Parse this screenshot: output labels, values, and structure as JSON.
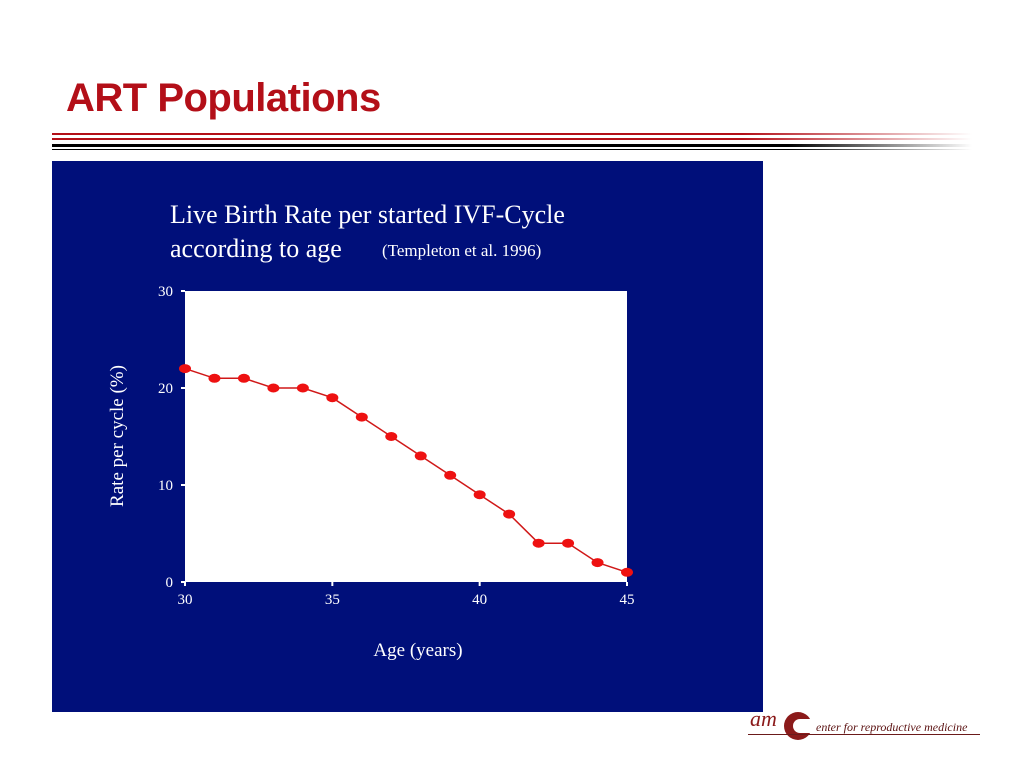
{
  "slide": {
    "title": "ART Populations"
  },
  "logo": {
    "mark": "am",
    "text": "enter for reproductive medicine"
  },
  "chart_data": {
    "type": "line",
    "title": "Live Birth Rate per started IVF-Cycle",
    "title_line2": "according to age",
    "source": "(Templeton et al. 1996)",
    "xlabel": "Age (years)",
    "ylabel": "Rate per cycle (%)",
    "x": [
      30,
      31,
      32,
      33,
      34,
      35,
      36,
      37,
      38,
      39,
      40,
      41,
      42,
      43,
      44,
      45
    ],
    "series": [
      {
        "values": [
          22,
          21,
          21,
          20,
          20,
          19,
          17,
          15,
          13,
          11,
          9,
          7,
          4,
          4,
          2,
          1
        ]
      }
    ],
    "xlim": [
      30,
      45
    ],
    "ylim": [
      0,
      30
    ],
    "xticks": [
      "30",
      "35",
      "40",
      "45"
    ],
    "yticks": [
      "0",
      "10",
      "20",
      "30"
    ],
    "grid": false,
    "colors": {
      "background": "#000f7a",
      "plot_area": "#ffffff",
      "line": "#d01818",
      "marker": "#ee1111",
      "text": "#ffffff"
    }
  }
}
